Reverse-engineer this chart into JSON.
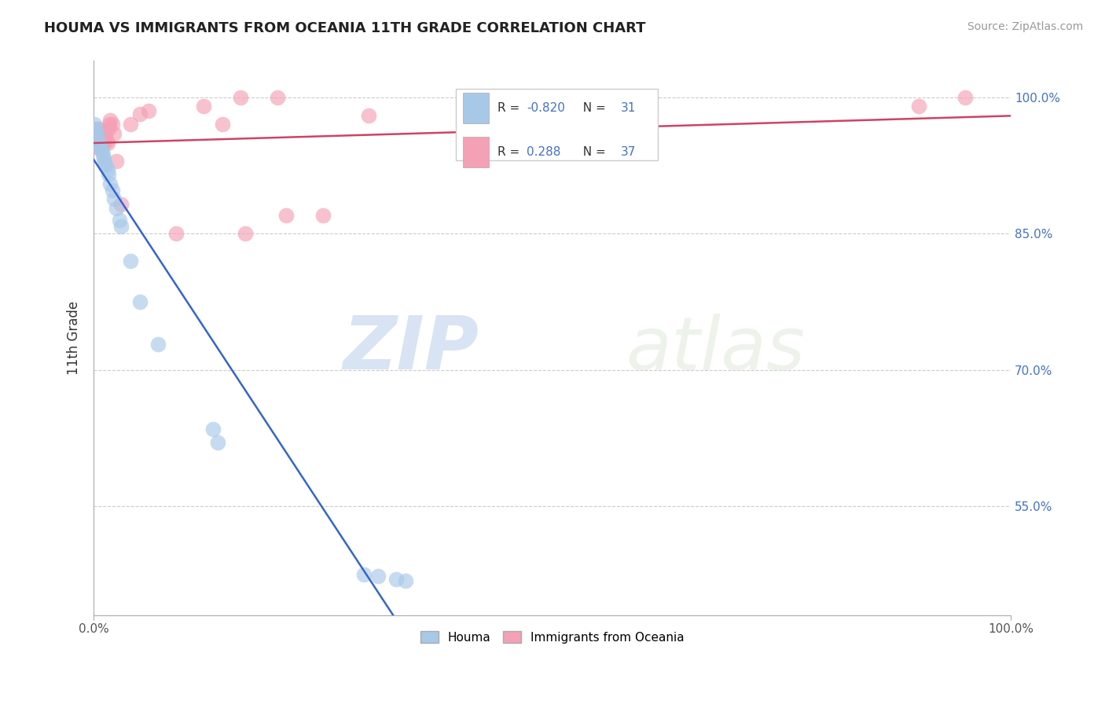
{
  "title": "HOUMA VS IMMIGRANTS FROM OCEANIA 11TH GRADE CORRELATION CHART",
  "source_text": "Source: ZipAtlas.com",
  "ylabel": "11th Grade",
  "xlim": [
    0.0,
    1.0
  ],
  "ylim": [
    0.43,
    1.04
  ],
  "xtick_positions": [
    0.0,
    1.0
  ],
  "xtick_labels": [
    "0.0%",
    "100.0%"
  ],
  "ytick_positions": [
    0.55,
    0.7,
    0.85,
    1.0
  ],
  "ytick_labels": [
    "55.0%",
    "70.0%",
    "85.0%",
    "100.0%"
  ],
  "houma_color": "#a8c8e8",
  "oceania_color": "#f4a0b5",
  "houma_line_color": "#3366cc",
  "oceania_line_color": "#cc4466",
  "houma_R": -0.82,
  "houma_N": 31,
  "oceania_R": 0.288,
  "oceania_N": 37,
  "watermark_zip": "ZIP",
  "watermark_atlas": "atlas",
  "houma_x": [
    0.0,
    0.001,
    0.002,
    0.003,
    0.004,
    0.005,
    0.006,
    0.007,
    0.008,
    0.009,
    0.01,
    0.011,
    0.012,
    0.013,
    0.015,
    0.016,
    0.018,
    0.02,
    0.022,
    0.025,
    0.028,
    0.03,
    0.04,
    0.05,
    0.07,
    0.13,
    0.135,
    0.295,
    0.31,
    0.33,
    0.34
  ],
  "houma_y": [
    0.965,
    0.97,
    0.965,
    0.96,
    0.955,
    0.95,
    0.948,
    0.945,
    0.943,
    0.94,
    0.937,
    0.932,
    0.928,
    0.925,
    0.92,
    0.915,
    0.905,
    0.898,
    0.888,
    0.878,
    0.865,
    0.858,
    0.82,
    0.775,
    0.728,
    0.635,
    0.62,
    0.475,
    0.473,
    0.47,
    0.468
  ],
  "oceania_x": [
    0.0,
    0.001,
    0.002,
    0.003,
    0.004,
    0.005,
    0.006,
    0.007,
    0.008,
    0.009,
    0.01,
    0.011,
    0.012,
    0.013,
    0.014,
    0.015,
    0.016,
    0.017,
    0.018,
    0.02,
    0.022,
    0.025,
    0.03,
    0.04,
    0.05,
    0.06,
    0.09,
    0.12,
    0.14,
    0.16,
    0.2,
    0.25,
    0.3,
    0.165,
    0.21,
    0.9,
    0.95
  ],
  "oceania_y": [
    0.945,
    0.95,
    0.955,
    0.96,
    0.965,
    0.965,
    0.962,
    0.96,
    0.957,
    0.955,
    0.953,
    0.95,
    0.955,
    0.96,
    0.952,
    0.95,
    0.965,
    0.97,
    0.975,
    0.97,
    0.96,
    0.93,
    0.882,
    0.97,
    0.982,
    0.985,
    0.85,
    0.99,
    0.97,
    1.0,
    1.0,
    0.87,
    0.98,
    0.85,
    0.87,
    0.99,
    1.0
  ],
  "grid_color": "#cccccc",
  "grid_linestyle": "--",
  "title_fontsize": 13,
  "label_fontsize": 11,
  "tick_fontsize": 11,
  "source_fontsize": 10
}
